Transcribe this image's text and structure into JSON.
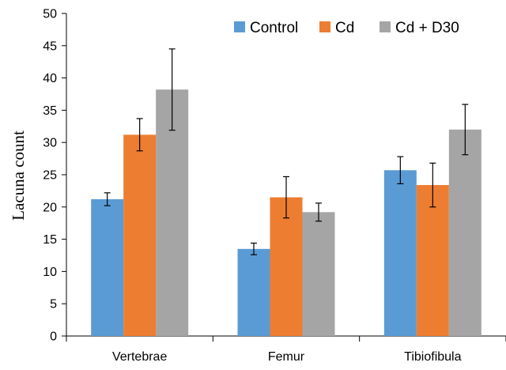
{
  "chart_data": {
    "type": "bar",
    "title": "",
    "xlabel": "",
    "ylabel": "Lacuna count",
    "ylim": [
      0,
      50
    ],
    "yticks": [
      0,
      5,
      10,
      15,
      20,
      25,
      30,
      35,
      40,
      45,
      50
    ],
    "grid": false,
    "legend_position": "top-right",
    "categories": [
      "Vertebrae",
      "Femur",
      "Tibiofibula"
    ],
    "series": [
      {
        "name": "Control",
        "color": "#5B9BD5",
        "values": [
          21.2,
          13.5,
          25.7
        ],
        "errors": [
          1.0,
          0.9,
          2.1
        ]
      },
      {
        "name": "Cd",
        "color": "#ED7D31",
        "values": [
          31.2,
          21.5,
          23.4
        ],
        "errors": [
          2.5,
          3.2,
          3.4
        ]
      },
      {
        "name": "Cd + D30",
        "color": "#A5A5A5",
        "values": [
          38.2,
          19.2,
          32.0
        ],
        "errors": [
          6.3,
          1.4,
          3.9
        ]
      }
    ]
  }
}
